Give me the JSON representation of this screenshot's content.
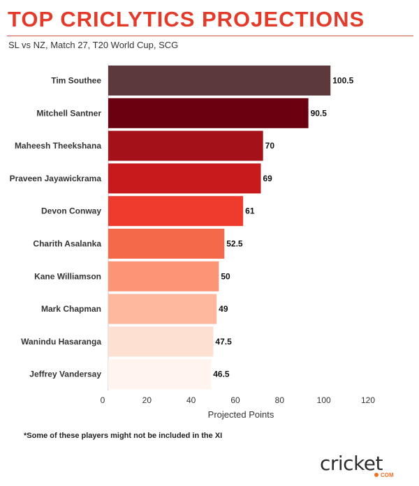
{
  "header": {
    "title": "TOP CRICLYTICS PROJECTIONS",
    "subtitle": "SL vs NZ, Match 27, T20 World Cup, SCG"
  },
  "footnote": "*Some of these players might not be included in the XI",
  "logo": {
    "brand": "cricket",
    "sub": "COM"
  },
  "chart_data": {
    "type": "bar",
    "orientation": "horizontal",
    "categories": [
      "Tim Southee",
      "Mitchell Santner",
      "Maheesh Theekshana",
      "Praveen Jayawickrama",
      "Devon Conway",
      "Charith Asalanka",
      "Kane Williamson",
      "Mark Chapman",
      "Wanindu Hasaranga",
      "Jeffrey Vandersay"
    ],
    "values": [
      100.5,
      90.5,
      70,
      69,
      61,
      52.5,
      50,
      49,
      47.5,
      46.5
    ],
    "value_labels": [
      "100.5",
      "90.5",
      "70",
      "69",
      "61",
      "52.5",
      "50",
      "49",
      "47.5",
      "46.5"
    ],
    "colors": [
      "#5c3a3c",
      "#6a0010",
      "#a51118",
      "#c8191c",
      "#ee3b2d",
      "#f5694b",
      "#fc9475",
      "#fdb89e",
      "#fee0d3",
      "#fff4ee"
    ],
    "xlabel": "Projected Points",
    "ylabel": "",
    "xlim": [
      0,
      120
    ],
    "xticks": [
      0,
      20,
      40,
      60,
      80,
      100,
      120
    ],
    "grid": false,
    "legend": "none"
  }
}
